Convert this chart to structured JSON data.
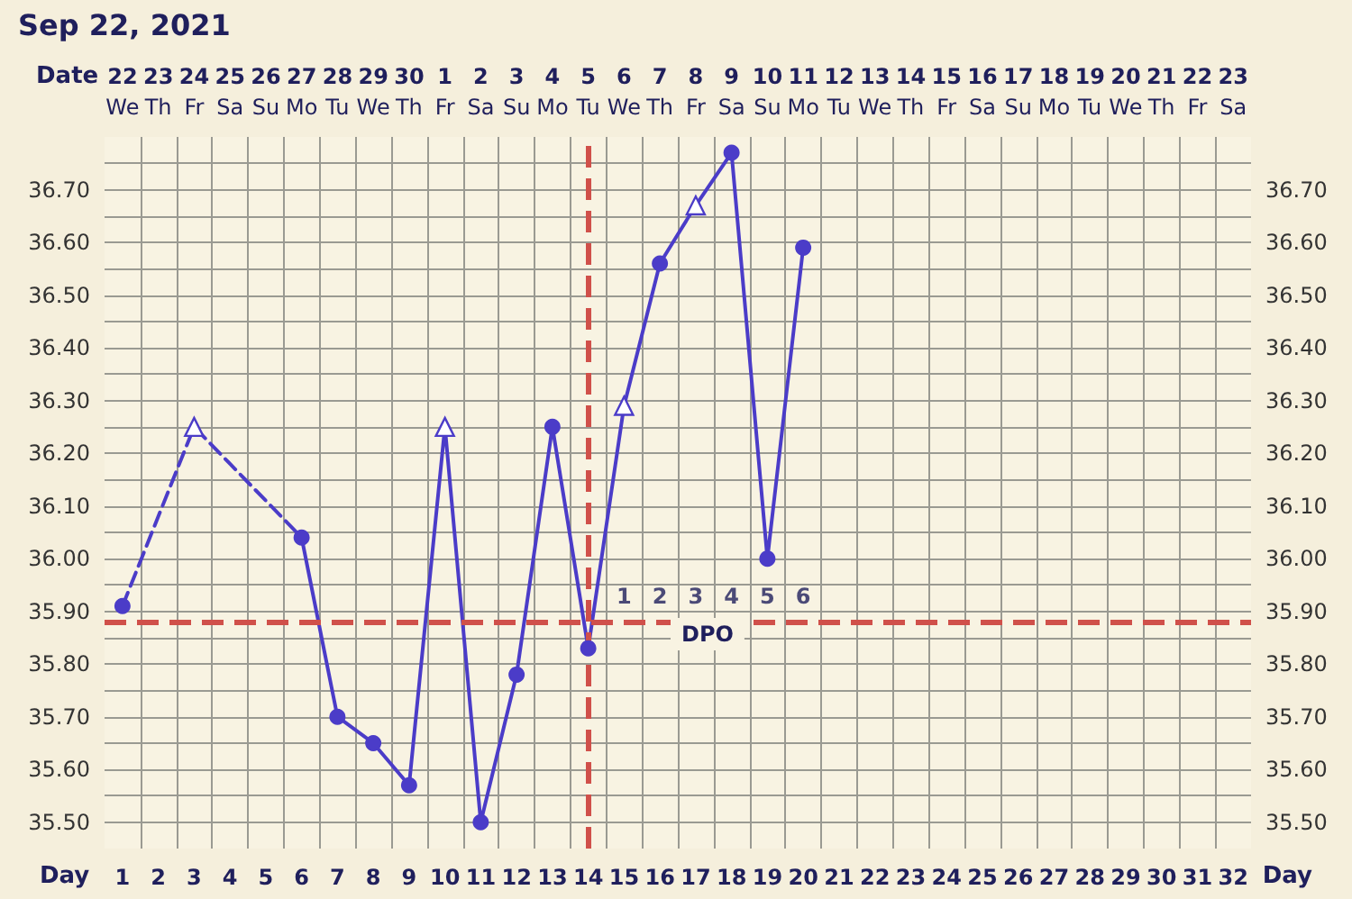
{
  "chart_data": {
    "type": "line",
    "title": "Sep 22, 2021",
    "xlabel": "Day",
    "x2label": "Date",
    "xlim": [
      0.5,
      32.5
    ],
    "xticks": [
      1,
      2,
      3,
      4,
      5,
      6,
      7,
      8,
      9,
      10,
      11,
      12,
      13,
      14,
      15,
      16,
      17,
      18,
      19,
      20,
      21,
      22,
      23,
      24,
      25,
      26,
      27,
      28,
      29,
      30,
      31,
      32,
      {
        "value": 1.5,
        "label": null
      },
      {
        "value": 2.5,
        "label": null
      },
      {
        "value": 3.5,
        "label": null
      },
      {
        "value": 4.5,
        "label": null
      },
      {
        "value": 5.5,
        "label": null
      },
      {
        "value": 6.5,
        "label": null
      },
      {
        "value": 7.5,
        "label": null
      },
      {
        "value": 8.5,
        "label": null
      },
      {
        "value": 9.5,
        "label": null
      },
      {
        "value": 10.5,
        "label": null
      },
      {
        "value": 11.5,
        "label": null
      },
      {
        "value": 12.5,
        "label": null
      },
      {
        "value": 13.5,
        "label": null
      },
      {
        "value": 14.5,
        "label": null
      },
      {
        "value": 15.5,
        "label": null
      },
      {
        "value": 16.5,
        "label": null
      },
      {
        "value": 17.5,
        "label": null
      },
      {
        "value": 18.5,
        "label": null
      },
      {
        "value": 19.5,
        "label": null
      },
      {
        "value": 20.5,
        "label": null
      },
      {
        "value": 21.5,
        "label": null
      },
      {
        "value": 22.5,
        "label": null
      },
      {
        "value": 23.5,
        "label": null
      },
      {
        "value": 24.5,
        "label": null
      },
      {
        "value": 25.5,
        "label": null
      },
      {
        "value": 26.5,
        "label": null
      },
      {
        "value": 27.5,
        "label": null
      },
      {
        "value": 28.5,
        "label": null
      },
      {
        "value": 29.5,
        "label": null
      },
      {
        "value": 30.5,
        "label": null
      },
      {
        "value": 31.5,
        "label": null
      }
    ],
    "x2lim": [
      "2021-09-21T12:00",
      "2021-10-23T12:00"
    ],
    "x2ticks": [
      {
        "value": "2021-09-22",
        "label": "22\nWe"
      },
      {
        "value": "2021-09-23",
        "label": "23\nTh"
      },
      {
        "value": "2021-09-24",
        "label": "24\nFr"
      },
      {
        "value": "2021-09-25",
        "label": "25\nSa"
      },
      {
        "value": "2021-09-26",
        "label": "26\nSu"
      },
      {
        "value": "2021-09-27",
        "label": "27\nMo"
      },
      {
        "value": "2021-09-28",
        "label": "28\nTu"
      },
      {
        "value": "2021-09-29",
        "label": "29\nWe"
      },
      {
        "value": "2021-09-30",
        "label": "30\nTh"
      },
      {
        "value": "2021-10-01",
        "label": "1\nFr"
      },
      {
        "value": "2021-10-02",
        "label": "2\nSa"
      },
      {
        "value": "2021-10-03",
        "label": "3\nSu"
      },
      {
        "value": "2021-10-04",
        "label": "4\nMo"
      },
      {
        "value": "2021-10-05",
        "label": "5\nTu"
      },
      {
        "value": "2021-10-06",
        "label": "6\nWe"
      },
      {
        "value": "2021-10-07",
        "label": "7\nTh"
      },
      {
        "value": "2021-10-08",
        "label": "8\nFr"
      },
      {
        "value": "2021-10-09",
        "label": "9\nSa"
      },
      {
        "value": "2021-10-10",
        "label": "10\nSu"
      },
      {
        "value": "2021-10-11",
        "label": "11\nMo"
      },
      {
        "value": "2021-10-12",
        "label": "12\nTu"
      },
      {
        "value": "2021-10-13",
        "label": "13\nWe"
      },
      {
        "value": "2021-10-14",
        "label": "14\nTh"
      },
      {
        "value": "2021-10-15",
        "label": "15\nFr"
      },
      {
        "value": "2021-10-16",
        "label": "16\nSa"
      },
      {
        "value": "2021-10-17",
        "label": "17\nSu"
      },
      {
        "value": "2021-10-18",
        "label": "18\nMo"
      },
      {
        "value": "2021-10-19",
        "label": "19\nTu"
      },
      {
        "value": "2021-10-20",
        "label": "20\nWe"
      },
      {
        "value": "2021-10-21",
        "label": "21\nTh"
      },
      {
        "value": "2021-10-22",
        "label": "22\nFr"
      },
      {
        "value": "2021-10-23",
        "label": "23\nSa"
      }
    ],
    "ylim": [
      35.45,
      36.8
    ],
    "yticks": [
      {
        "value": 35.5,
        "label": "35.50"
      },
      {
        "value": 35.55,
        "label": null
      },
      {
        "value": 35.6,
        "label": "35.60"
      },
      {
        "value": 35.65,
        "label": null
      },
      {
        "value": 35.7,
        "label": "35.70"
      },
      {
        "value": 35.75,
        "label": null
      },
      {
        "value": 35.8,
        "label": "35.80"
      },
      {
        "value": 35.85,
        "label": null
      },
      {
        "value": 35.9,
        "label": "35.90"
      },
      {
        "value": 35.95,
        "label": null
      },
      {
        "value": 36.0,
        "label": "36.00"
      },
      {
        "value": 36.05,
        "label": null
      },
      {
        "value": 36.1,
        "label": "36.10"
      },
      {
        "value": 36.15,
        "label": null
      },
      {
        "value": 36.2,
        "label": "36.20"
      },
      {
        "value": 36.25,
        "label": null
      },
      {
        "value": 36.3,
        "label": "36.30"
      },
      {
        "value": 36.35,
        "label": null
      },
      {
        "value": 36.4,
        "label": "36.40"
      },
      {
        "value": 36.45,
        "label": null
      },
      {
        "value": 36.5,
        "label": "36.50"
      },
      {
        "value": 36.55,
        "label": null
      },
      {
        "value": 36.6,
        "label": "36.60"
      },
      {
        "value": 36.65,
        "label": null
      },
      {
        "value": 36.7,
        "label": "36.70"
      },
      {
        "value": 36.75,
        "label": null
      }
    ],
    "y2lim": [
      35.45,
      36.8
    ],
    "y2ticks": [
      {
        "value": 35.5,
        "label": "35.50"
      },
      {
        "value": 35.6,
        "label": "35.60"
      },
      {
        "value": 35.7,
        "label": "35.70"
      },
      {
        "value": 35.8,
        "label": "35.80"
      },
      {
        "value": 35.9,
        "label": "35.90"
      },
      {
        "value": 36.0,
        "label": "36.00"
      },
      {
        "value": 36.1,
        "label": "36.10"
      },
      {
        "value": 36.2,
        "label": "36.20"
      },
      {
        "value": 36.3,
        "label": "36.30"
      },
      {
        "value": 36.4,
        "label": "36.40"
      },
      {
        "value": 36.5,
        "label": "36.50"
      },
      {
        "value": 36.6,
        "label": "36.60"
      },
      {
        "value": 36.7,
        "label": "36.70"
      }
    ],
    "grid": true,
    "series": [
      {
        "color": "#4b3cc8",
        "line_style": "dashed",
        "marker": "none",
        "x": [
          1,
          3,
          6
        ],
        "values": [
          35.91,
          36.25,
          36.04
        ]
      },
      {
        "color": "#4b3cc8",
        "line_style": "solid",
        "marker": "none",
        "x": [
          6,
          7,
          8,
          9,
          10,
          11,
          12,
          13,
          14,
          15,
          16,
          17,
          18,
          19,
          20
        ],
        "values": [
          36.04,
          35.7,
          35.65,
          35.57,
          36.25,
          35.5,
          35.78,
          36.25,
          35.83,
          36.29,
          36.56,
          36.67,
          36.77,
          36.0,
          36.59
        ]
      },
      {
        "type": "scatter",
        "color": "#4b3cc8",
        "marker": "circle",
        "x": [
          1,
          6,
          7,
          8,
          9,
          11,
          12,
          13,
          14,
          16,
          18,
          19,
          20
        ],
        "values": [
          35.91,
          36.04,
          35.7,
          35.65,
          35.57,
          35.5,
          35.78,
          36.25,
          35.83,
          36.56,
          36.77,
          36.0,
          36.59
        ]
      },
      {
        "type": "scatter",
        "color": "#4b3cc8",
        "marker": "triangle",
        "x": [
          3,
          10,
          15,
          17
        ],
        "values": [
          36.25,
          36.25,
          36.29,
          36.67
        ]
      }
    ],
    "ref_lines": [
      {
        "axis": "y",
        "value": 35.88,
        "color": "#d0504a",
        "line_style": "dashed"
      },
      {
        "axis": "x",
        "value": 14,
        "color": "#d0504a",
        "line_style": "dashed"
      }
    ],
    "annotations": [
      {
        "text": "1",
        "x": 15,
        "y": 35.88
      },
      {
        "text": "2",
        "x": 16,
        "y": 35.88
      },
      {
        "text": "3",
        "x": 17,
        "y": 35.88
      },
      {
        "text": "4",
        "x": 18,
        "y": 35.88
      },
      {
        "text": "5",
        "x": 19,
        "y": 35.88
      },
      {
        "text": "6",
        "x": 20,
        "y": 35.88
      },
      "DPO"
    ]
  }
}
